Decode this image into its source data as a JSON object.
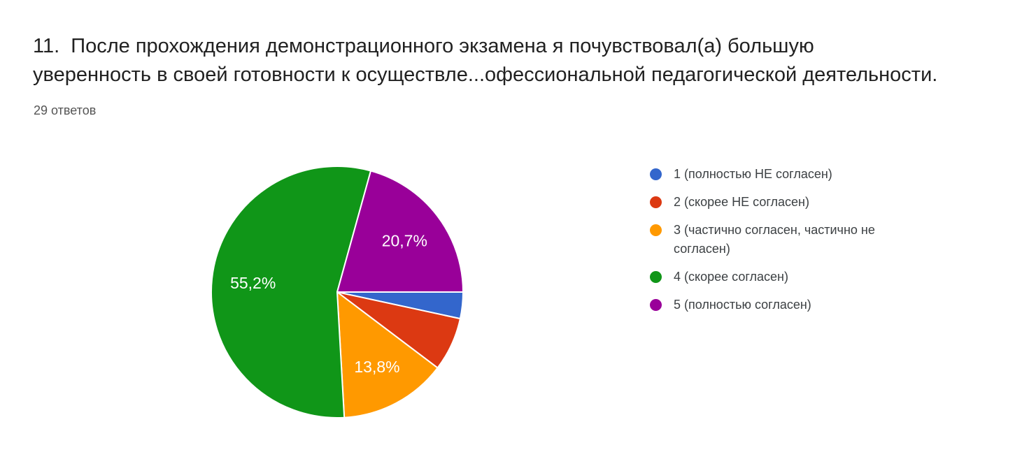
{
  "question": {
    "title_line1": "11.  После прохождения демонстрационного экзамена я почувствовал(а) большую",
    "title_line2": "уверенность в своей готовности к осуществле...офессиональной педагогической деятельности.",
    "answers_count": "29 ответов"
  },
  "chart_data": {
    "type": "pie",
    "title": "11.  После прохождения демонстрационного экзамена я почувствовал(а) большую уверенность в своей готовности к осуществле...офессиональной педагогической деятельности.",
    "subtitle": "29 ответов",
    "total_responses": 29,
    "legend_position": "right",
    "start_angle_deg_clockwise_from_top": 90,
    "direction": "clockwise",
    "slices": [
      {
        "legend": "1 (полностью НЕ согласен)",
        "color": "#3366CC",
        "percent": 3.4,
        "label": null
      },
      {
        "legend": "2 (скорее НЕ согласен)",
        "color": "#DC3912",
        "percent": 6.9,
        "label": null
      },
      {
        "legend": "3 (частично согласен, частично не согласен)",
        "color": "#FF9900",
        "percent": 13.8,
        "label": "13,8%"
      },
      {
        "legend": "4 (скорее согласен)",
        "color": "#109618",
        "percent": 55.2,
        "label": "55,2%"
      },
      {
        "legend": "5 (полностью согласен)",
        "color": "#990099",
        "percent": 20.7,
        "label": "20,7%"
      }
    ]
  }
}
